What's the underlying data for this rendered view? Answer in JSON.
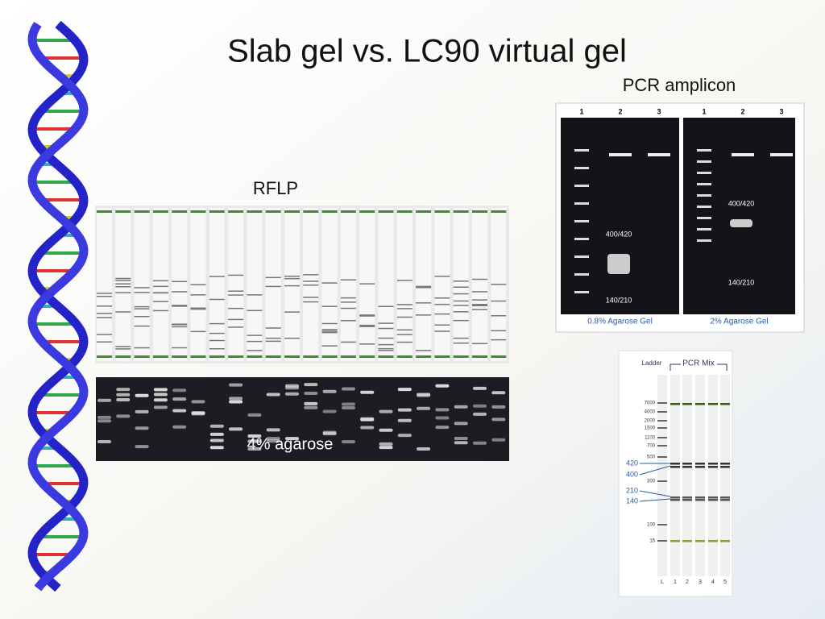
{
  "title": "Slab gel vs. LC90 virtual gel",
  "rflp": {
    "label": "RFLP",
    "agarose_label": "4% agarose"
  },
  "pcr_amplicon": {
    "label": "PCR amplicon",
    "gels": [
      {
        "lanes": [
          "1",
          "2",
          "3"
        ],
        "band_labels": [
          "400/420",
          "140/210"
        ],
        "caption": "0.8% Agarose Gel"
      },
      {
        "lanes": [
          "1",
          "2",
          "3"
        ],
        "band_labels": [
          "400/420",
          "140/210"
        ],
        "caption": "2% Agarose Gel"
      }
    ]
  },
  "virtual_gel": {
    "ladder_label": "Ladder",
    "mix_label": "PCR Mix",
    "ladder_sizes": [
      "7000",
      "4000",
      "2000",
      "1500",
      "1100",
      "700",
      "500",
      "300",
      "100",
      "15"
    ],
    "highlight_sizes": [
      "420",
      "400",
      "210",
      "140"
    ],
    "lanes": [
      "L",
      "1",
      "2",
      "3",
      "4",
      "5"
    ]
  }
}
